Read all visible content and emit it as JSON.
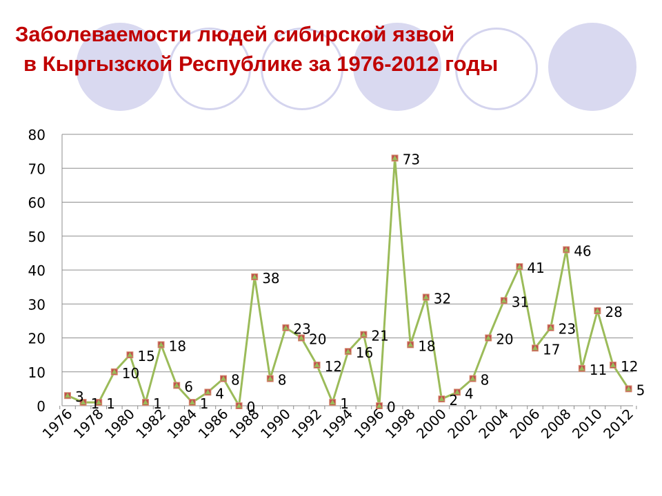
{
  "title_line1": "Заболеваемости людей сибирской язвой",
  "title_line2": "в Кыргызской Республике за 1976-2012 годы",
  "colors": {
    "title": "#c00000",
    "line": "#9bbb59",
    "marker_square": "#c0504d",
    "marker_triangle": "#9bbb59",
    "decor": "#d9d9f0"
  },
  "chart_data": {
    "type": "line",
    "title": "",
    "xlabel": "",
    "ylabel": "",
    "ylim": [
      0,
      80
    ],
    "yticks": [
      0,
      10,
      20,
      30,
      40,
      50,
      60,
      70,
      80
    ],
    "grid": "horizontal",
    "legend": "none",
    "x_tick_labels": [
      "1976",
      "1978",
      "1980",
      "1982",
      "1984",
      "1986",
      "1988",
      "1990",
      "1992",
      "1994",
      "1996",
      "1998",
      "2000",
      "2002",
      "2004",
      "2006",
      "2008",
      "2010",
      "2012"
    ],
    "points": [
      {
        "x": 1976,
        "y": 3,
        "label": "3"
      },
      {
        "x": 1977,
        "y": 1,
        "label": "1"
      },
      {
        "x": 1978,
        "y": 1,
        "label": "1"
      },
      {
        "x": 1979,
        "y": 10,
        "label": "10"
      },
      {
        "x": 1980,
        "y": 15,
        "label": "15"
      },
      {
        "x": 1981,
        "y": 1,
        "label": "1"
      },
      {
        "x": 1982,
        "y": 18,
        "label": "18"
      },
      {
        "x": 1983,
        "y": 6,
        "label": "6"
      },
      {
        "x": 1984,
        "y": 1,
        "label": "1"
      },
      {
        "x": 1985,
        "y": 4,
        "label": "4"
      },
      {
        "x": 1986,
        "y": 8,
        "label": "8"
      },
      {
        "x": 1987,
        "y": 0,
        "label": "0"
      },
      {
        "x": 1988,
        "y": 38,
        "label": "38"
      },
      {
        "x": 1989,
        "y": 8,
        "label": "8"
      },
      {
        "x": 1990,
        "y": 23,
        "label": "23"
      },
      {
        "x": 1991,
        "y": 20,
        "label": "20"
      },
      {
        "x": 1992,
        "y": 12,
        "label": "12"
      },
      {
        "x": 1993,
        "y": 1,
        "label": "1"
      },
      {
        "x": 1994,
        "y": 16,
        "label": "16"
      },
      {
        "x": 1995,
        "y": 21,
        "label": "21"
      },
      {
        "x": 1996,
        "y": 0,
        "label": "0"
      },
      {
        "x": 1997,
        "y": 73,
        "label": "73"
      },
      {
        "x": 1998,
        "y": 18,
        "label": "18"
      },
      {
        "x": 1999,
        "y": 32,
        "label": "32"
      },
      {
        "x": 2000,
        "y": 2,
        "label": "2"
      },
      {
        "x": 2001,
        "y": 4,
        "label": "4"
      },
      {
        "x": 2002,
        "y": 8,
        "label": "8"
      },
      {
        "x": 2003,
        "y": 20,
        "label": "20"
      },
      {
        "x": 2004,
        "y": 31,
        "label": "31"
      },
      {
        "x": 2005,
        "y": 41,
        "label": "41"
      },
      {
        "x": 2006,
        "y": 17,
        "label": "17"
      },
      {
        "x": 2007,
        "y": 23,
        "label": "23"
      },
      {
        "x": 2008,
        "y": 46,
        "label": "46"
      },
      {
        "x": 2009,
        "y": 11,
        "label": "11"
      },
      {
        "x": 2010,
        "y": 28,
        "label": "28"
      },
      {
        "x": 2011,
        "y": 12,
        "label": "12"
      },
      {
        "x": 2012,
        "y": 5,
        "label": "5"
      }
    ]
  }
}
